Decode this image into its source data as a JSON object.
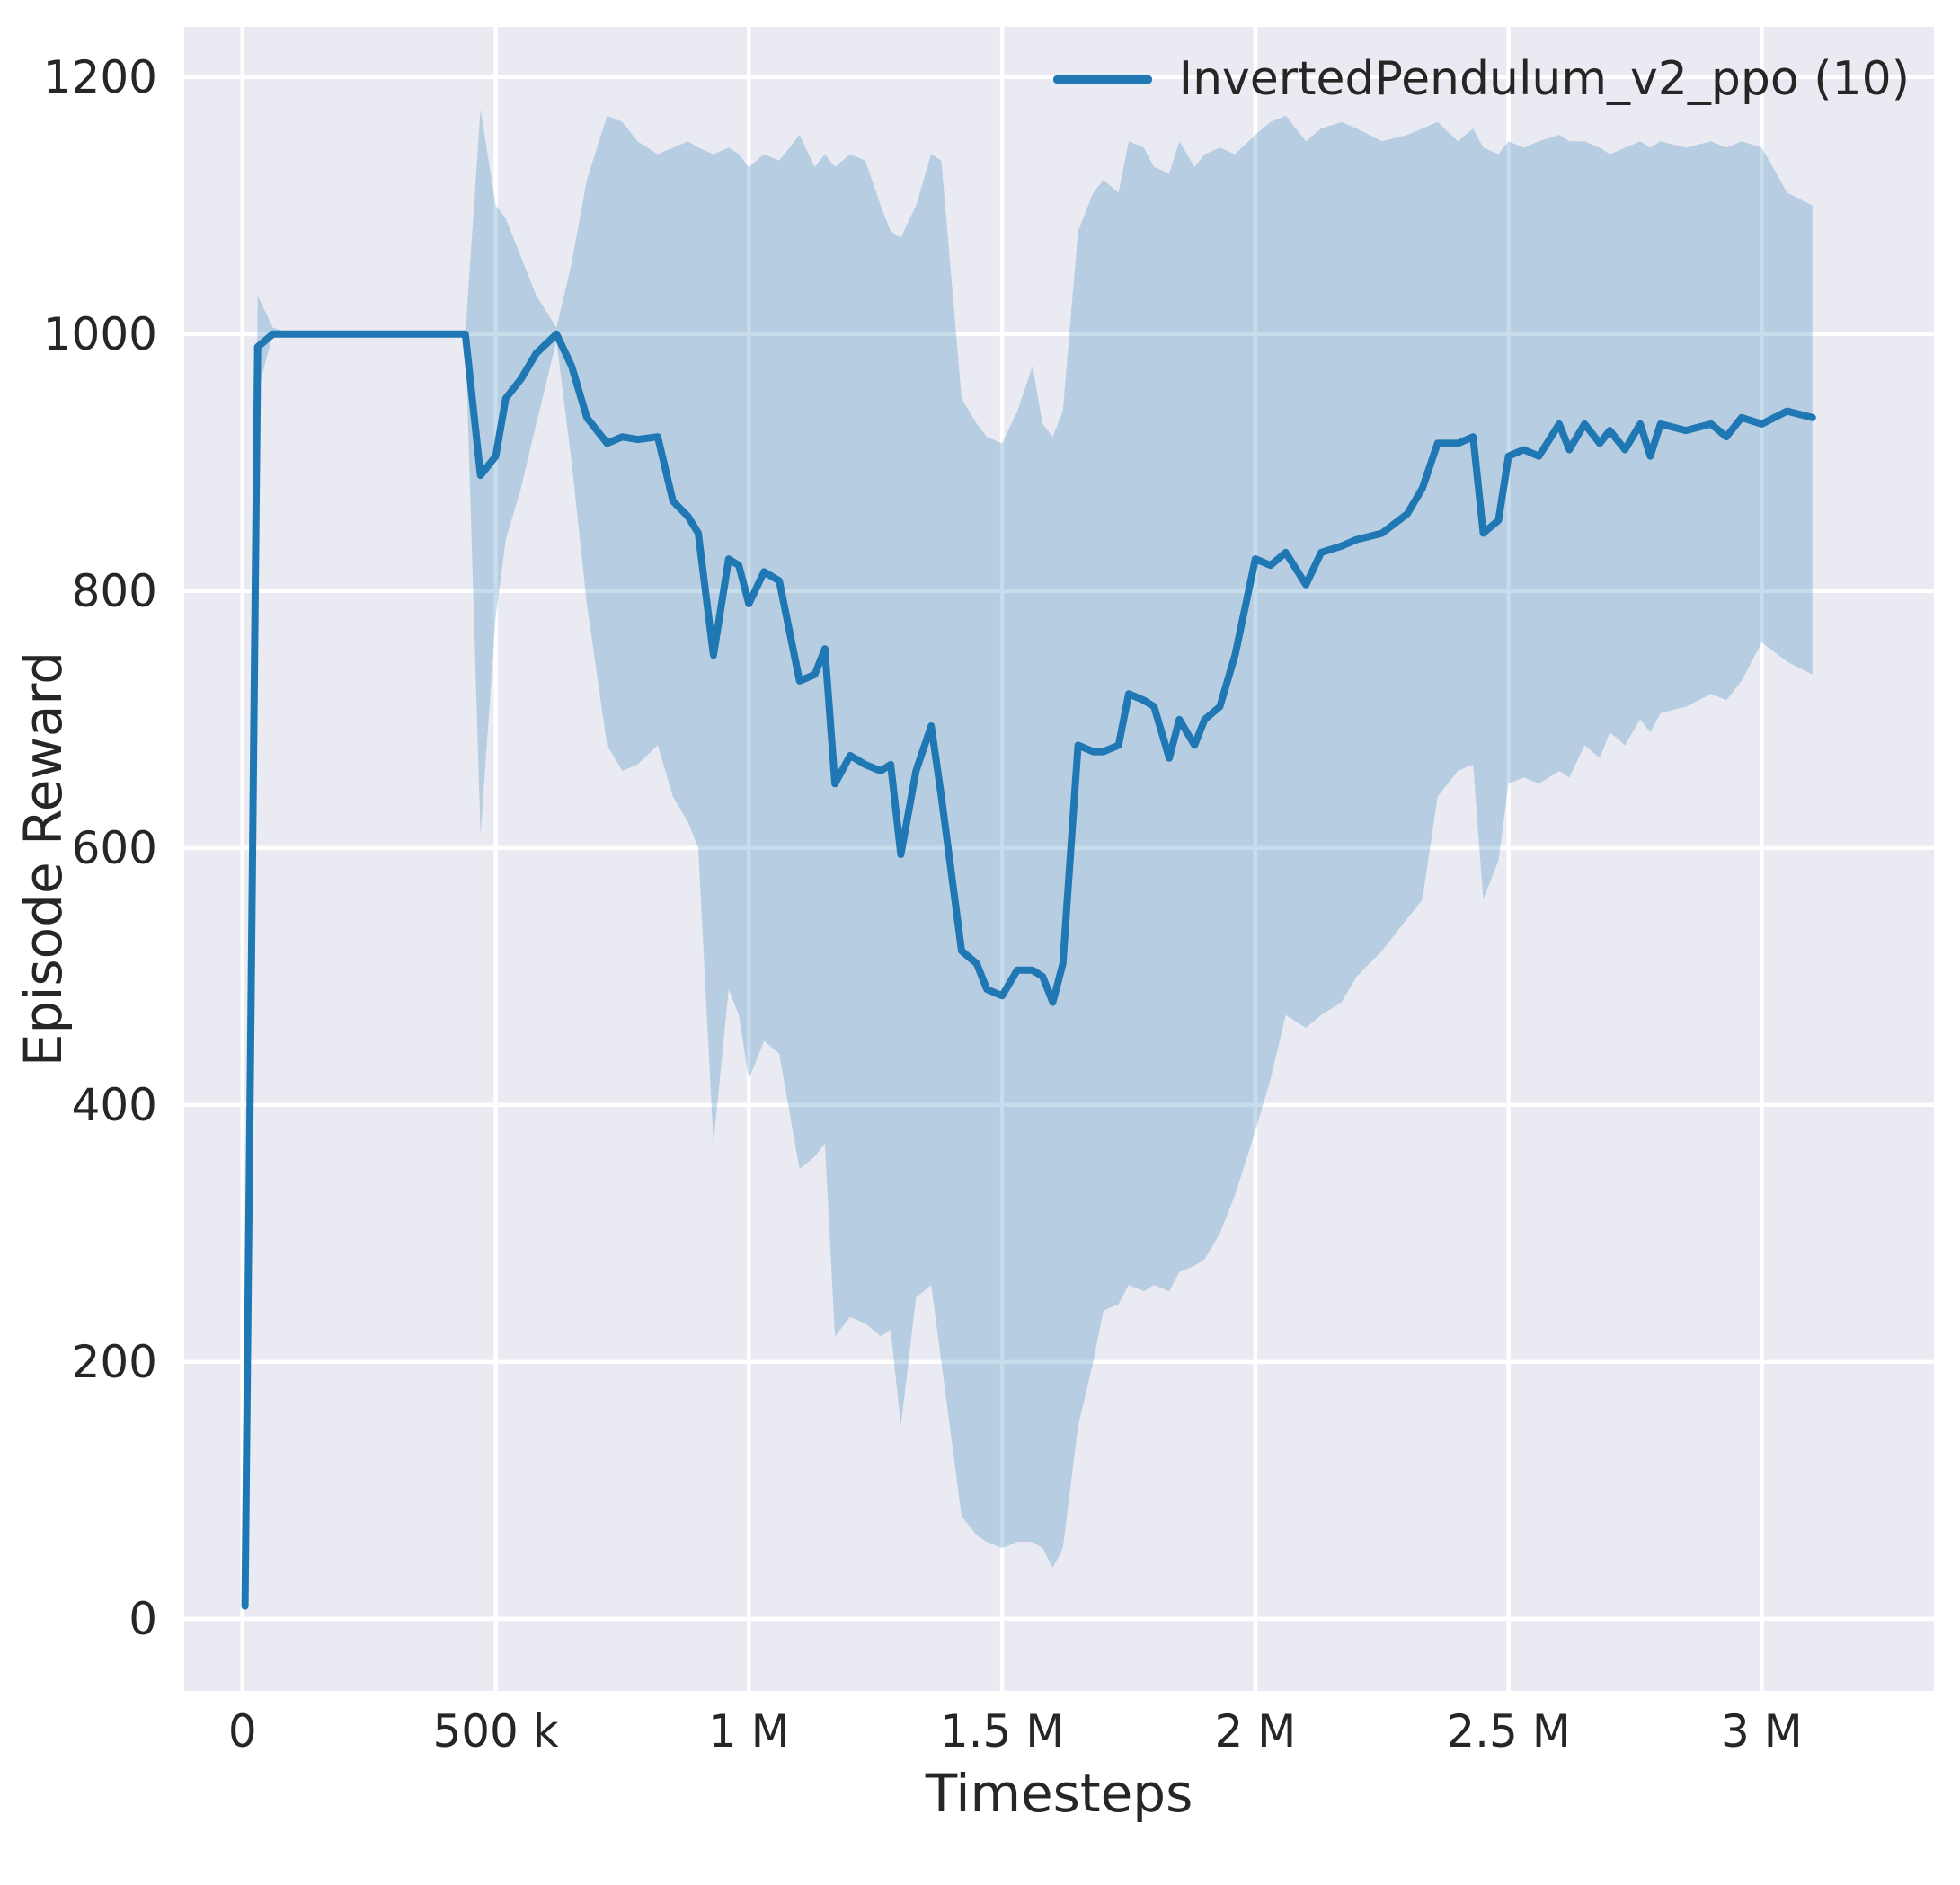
{
  "figure": {
    "plot_background": "#eaeaf2",
    "grid_color": "#ffffff",
    "line_color": "#1f77b4",
    "band_color": "#1f77b4",
    "band_opacity": 0.25,
    "text_color": "#262626"
  },
  "chart_data": {
    "type": "line",
    "title": "",
    "xlabel": "Timesteps",
    "ylabel": "Episode Reward",
    "grid": true,
    "legend_position": "upper right",
    "x_unit": "millions of timesteps",
    "xlim": [
      -0.115,
      3.34
    ],
    "ylim": [
      -56,
      1239
    ],
    "xticks": {
      "values": [
        0,
        0.5,
        1,
        1.5,
        2,
        2.5,
        3
      ],
      "labels": [
        "0",
        "500 k",
        "1 M",
        "1.5 M",
        "2 M",
        "2.5 M",
        "3 M"
      ]
    },
    "yticks": {
      "values": [
        0,
        200,
        400,
        600,
        800,
        1000,
        1200
      ],
      "labels": [
        "0",
        "200",
        "400",
        "600",
        "800",
        "1000",
        "1200"
      ]
    },
    "series": [
      {
        "name": "InvertedPendulum_v2_ppo (10)",
        "x": [
          0.005,
          0.03,
          0.06,
          0.1,
          0.2,
          0.3,
          0.4,
          0.44,
          0.47,
          0.5,
          0.52,
          0.55,
          0.58,
          0.62,
          0.65,
          0.68,
          0.72,
          0.75,
          0.78,
          0.82,
          0.85,
          0.88,
          0.9,
          0.93,
          0.96,
          0.98,
          1.0,
          1.03,
          1.06,
          1.1,
          1.13,
          1.15,
          1.17,
          1.2,
          1.23,
          1.26,
          1.28,
          1.3,
          1.33,
          1.36,
          1.38,
          1.42,
          1.45,
          1.47,
          1.5,
          1.53,
          1.56,
          1.58,
          1.6,
          1.62,
          1.65,
          1.68,
          1.7,
          1.73,
          1.75,
          1.78,
          1.8,
          1.83,
          1.85,
          1.88,
          1.9,
          1.93,
          1.96,
          2.0,
          2.03,
          2.06,
          2.1,
          2.13,
          2.17,
          2.2,
          2.25,
          2.3,
          2.33,
          2.36,
          2.4,
          2.43,
          2.45,
          2.48,
          2.5,
          2.53,
          2.56,
          2.6,
          2.62,
          2.65,
          2.68,
          2.7,
          2.73,
          2.76,
          2.78,
          2.8,
          2.85,
          2.9,
          2.93,
          2.96,
          3.0,
          3.05,
          3.1
        ],
        "mean": [
          10,
          990,
          1000,
          1000,
          1000,
          1000,
          1000,
          1000,
          890,
          905,
          950,
          965,
          985,
          1000,
          975,
          935,
          915,
          920,
          918,
          920,
          870,
          858,
          845,
          750,
          825,
          820,
          790,
          815,
          808,
          730,
          735,
          755,
          650,
          672,
          665,
          660,
          665,
          595,
          660,
          695,
          640,
          520,
          510,
          490,
          485,
          505,
          505,
          500,
          480,
          510,
          680,
          675,
          675,
          680,
          720,
          715,
          710,
          670,
          700,
          680,
          700,
          710,
          750,
          825,
          820,
          830,
          805,
          830,
          835,
          840,
          845,
          860,
          880,
          915,
          915,
          920,
          845,
          855,
          905,
          910,
          905,
          930,
          910,
          930,
          915,
          925,
          910,
          930,
          905,
          930,
          925,
          930,
          920,
          935,
          930,
          940,
          935
        ],
        "lower": [
          5,
          955,
          1000,
          1000,
          1000,
          1000,
          1000,
          1000,
          610,
          780,
          840,
          880,
          930,
          995,
          900,
          790,
          680,
          660,
          665,
          680,
          640,
          620,
          600,
          370,
          490,
          470,
          420,
          450,
          440,
          350,
          360,
          370,
          220,
          235,
          230,
          220,
          225,
          150,
          250,
          260,
          200,
          80,
          65,
          60,
          55,
          60,
          60,
          55,
          40,
          55,
          150,
          200,
          240,
          245,
          260,
          255,
          260,
          255,
          270,
          275,
          280,
          300,
          330,
          380,
          420,
          470,
          460,
          470,
          480,
          500,
          520,
          545,
          560,
          640,
          660,
          665,
          560,
          590,
          650,
          655,
          650,
          660,
          655,
          680,
          670,
          690,
          680,
          700,
          690,
          705,
          710,
          720,
          715,
          730,
          760,
          745,
          735
        ],
        "upper": [
          15,
          1030,
          1005,
          1000,
          1000,
          1000,
          1000,
          1000,
          1175,
          1100,
          1090,
          1060,
          1030,
          1005,
          1055,
          1120,
          1170,
          1165,
          1150,
          1140,
          1145,
          1150,
          1145,
          1140,
          1145,
          1140,
          1130,
          1140,
          1135,
          1155,
          1130,
          1140,
          1130,
          1140,
          1135,
          1100,
          1080,
          1075,
          1100,
          1140,
          1135,
          950,
          930,
          920,
          915,
          940,
          975,
          930,
          920,
          940,
          1080,
          1110,
          1120,
          1110,
          1150,
          1145,
          1130,
          1125,
          1150,
          1130,
          1140,
          1145,
          1140,
          1155,
          1165,
          1170,
          1150,
          1160,
          1165,
          1160,
          1150,
          1155,
          1160,
          1165,
          1150,
          1160,
          1145,
          1140,
          1150,
          1145,
          1150,
          1155,
          1150,
          1150,
          1145,
          1140,
          1145,
          1150,
          1145,
          1150,
          1145,
          1150,
          1145,
          1150,
          1145,
          1110,
          1100
        ]
      }
    ]
  }
}
